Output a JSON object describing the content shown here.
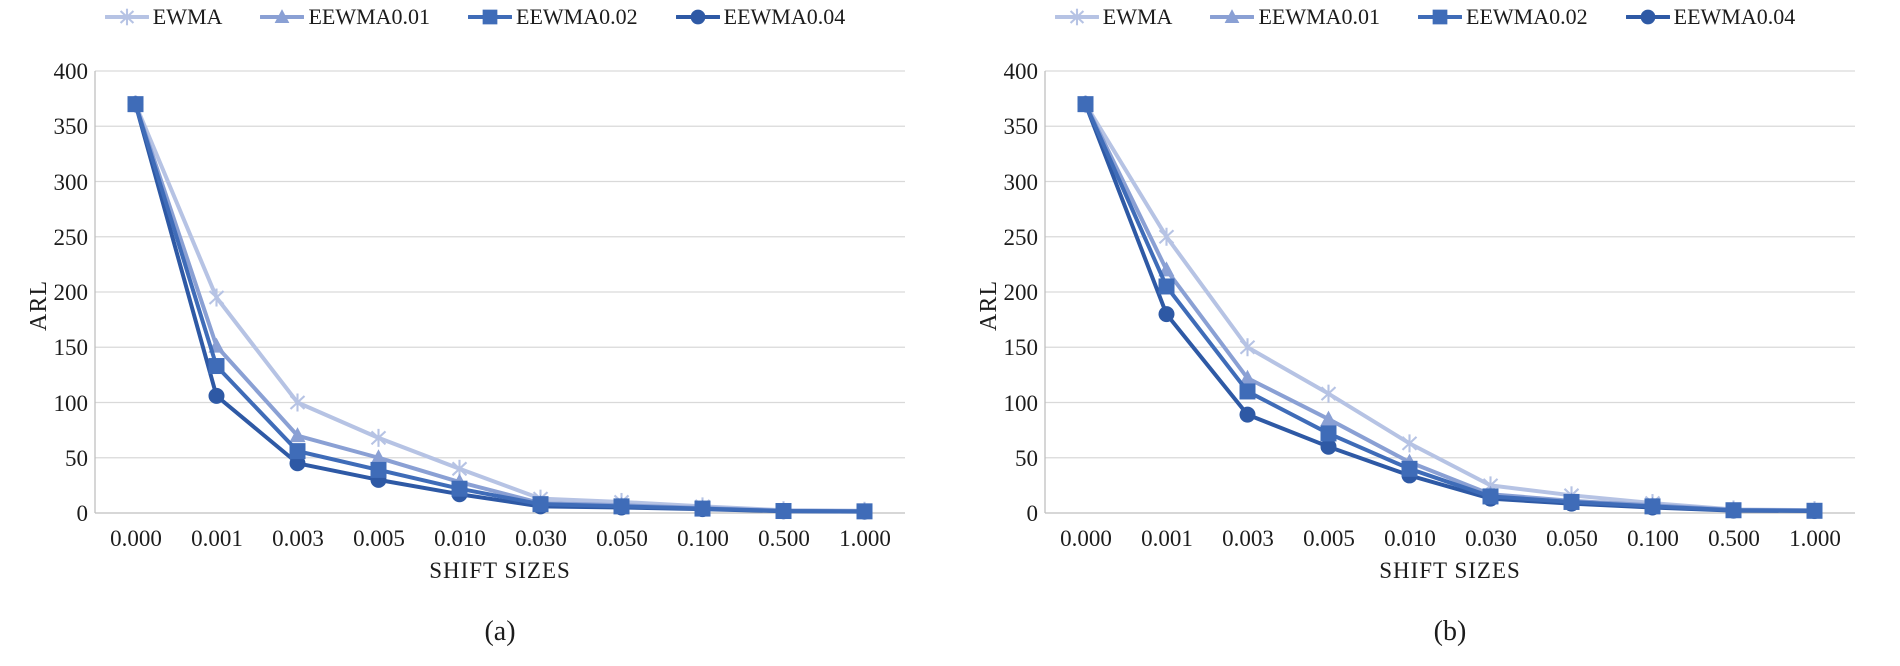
{
  "figure": {
    "x_axis_title": "SHIFT SIZES",
    "y_axis_title": "ARL",
    "caption_a": "(a)",
    "caption_b": "(b)"
  },
  "legend": [
    {
      "label": "EWMA",
      "marker": "star",
      "color": "#b6c3e4"
    },
    {
      "label": "EEWMA0.01",
      "marker": "triangle",
      "color": "#8aa0d4"
    },
    {
      "label": "EEWMA0.02",
      "marker": "square",
      "color": "#3f6cb8"
    },
    {
      "label": "EEWMA0.04",
      "marker": "circle",
      "color": "#2e59a5"
    }
  ],
  "chart_data": [
    {
      "type": "line",
      "caption": "(a)",
      "xlabel": "SHIFT SIZES",
      "ylabel": "ARL",
      "ylim": [
        0,
        400
      ],
      "ytick_step": 50,
      "grid": true,
      "legend_position": "top",
      "categories": [
        "0.000",
        "0.001",
        "0.003",
        "0.005",
        "0.010",
        "0.030",
        "0.050",
        "0.100",
        "0.500",
        "1.000"
      ],
      "series": [
        {
          "name": "EWMA",
          "marker": "star",
          "color": "#b6c3e4",
          "values": [
            370,
            195,
            100,
            68,
            40,
            13,
            10,
            6,
            2.5,
            2
          ]
        },
        {
          "name": "EEWMA0.01",
          "marker": "triangle",
          "color": "#8aa0d4",
          "values": [
            370,
            151,
            70,
            50,
            28,
            9,
            7,
            4.5,
            2,
            1.7
          ]
        },
        {
          "name": "EEWMA0.02",
          "marker": "square",
          "color": "#3f6cb8",
          "values": [
            370,
            133,
            56,
            39,
            22,
            8,
            6,
            4,
            1.8,
            1.5
          ]
        },
        {
          "name": "EEWMA0.04",
          "marker": "circle",
          "color": "#2e59a5",
          "values": [
            370,
            106,
            45,
            30,
            17,
            6,
            5,
            3.5,
            1.6,
            1.3
          ]
        }
      ]
    },
    {
      "type": "line",
      "caption": "(b)",
      "xlabel": "SHIFT SIZES",
      "ylabel": "ARL",
      "ylim": [
        0,
        400
      ],
      "ytick_step": 50,
      "grid": true,
      "legend_position": "top",
      "categories": [
        "0.000",
        "0.001",
        "0.003",
        "0.005",
        "0.010",
        "0.030",
        "0.050",
        "0.100",
        "0.500",
        "1.000"
      ],
      "series": [
        {
          "name": "EWMA",
          "marker": "star",
          "color": "#b6c3e4",
          "values": [
            370,
            250,
            150,
            108,
            63,
            25,
            16,
            9,
            3.2,
            2.6
          ]
        },
        {
          "name": "EEWMA0.01",
          "marker": "triangle",
          "color": "#8aa0d4",
          "values": [
            370,
            220,
            122,
            85,
            46,
            17,
            11,
            7,
            2.8,
            2.2
          ]
        },
        {
          "name": "EEWMA0.02",
          "marker": "square",
          "color": "#3f6cb8",
          "values": [
            370,
            205,
            110,
            72,
            40,
            15,
            10,
            6,
            2.5,
            2
          ]
        },
        {
          "name": "EEWMA0.04",
          "marker": "circle",
          "color": "#2e59a5",
          "values": [
            370,
            180,
            89,
            60,
            34,
            13,
            8.5,
            5,
            2.2,
            1.8
          ]
        }
      ]
    }
  ],
  "style": {
    "gridline_color": "#d9d9d9",
    "axis_line_color": "#bfbfbf",
    "text_color": "#1c1c1c"
  }
}
